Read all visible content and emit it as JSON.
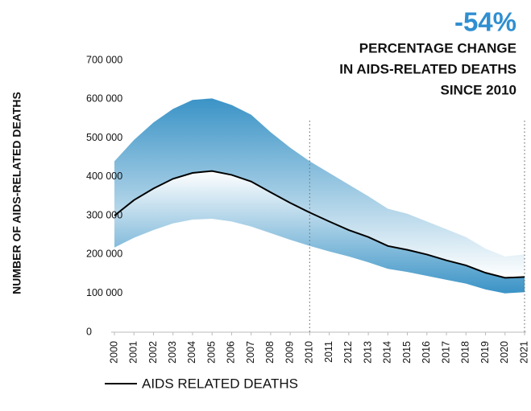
{
  "chart_data": {
    "type": "line",
    "y_label": "NUMBER OF AIDS-RELATED DEATHS",
    "categories": [
      "2000",
      "2001",
      "2002",
      "2003",
      "2004",
      "2005",
      "2006",
      "2007",
      "2008",
      "2009",
      "2010",
      "2011",
      "2012",
      "2013",
      "2014",
      "2015",
      "2016",
      "2017",
      "2018",
      "2019",
      "2020",
      "2021"
    ],
    "series": [
      {
        "name": "AIDS RELATED DEATHS",
        "color": "#000000",
        "values": [
          300000,
          340000,
          370000,
          395000,
          410000,
          415000,
          405000,
          388000,
          360000,
          333000,
          308000,
          285000,
          263000,
          245000,
          222000,
          212000,
          200000,
          185000,
          172000,
          153000,
          140000,
          142000
        ]
      }
    ],
    "band": {
      "color": "#3a93c6",
      "upper": [
        440000,
        495000,
        540000,
        575000,
        598000,
        602000,
        585000,
        560000,
        515000,
        475000,
        440000,
        410000,
        380000,
        350000,
        318000,
        305000,
        285000,
        265000,
        245000,
        215000,
        195000,
        200000
      ],
      "lower": [
        218000,
        243000,
        263000,
        280000,
        290000,
        292000,
        285000,
        272000,
        255000,
        238000,
        222000,
        208000,
        195000,
        180000,
        163000,
        155000,
        145000,
        135000,
        125000,
        110000,
        100000,
        103000
      ]
    },
    "ylim": [
      0,
      700000
    ],
    "yticks": [
      0,
      {
        "value": 100000,
        "label": "100 000"
      },
      {
        "value": 200000,
        "label": "200 000"
      },
      {
        "value": 300000,
        "label": "300 000"
      },
      {
        "value": 400000,
        "label": "400 000"
      },
      {
        "value": 500000,
        "label": "500 000"
      },
      {
        "value": 600000,
        "label": "600 000"
      },
      {
        "value": 700000,
        "label": "700 000"
      }
    ],
    "reference_x": [
      "2010",
      "2021"
    ],
    "annotation": {
      "value": -54,
      "value_label": "-54%",
      "color": "#2f8fd0",
      "lines": [
        "PERCENTAGE CHANGE",
        "IN AIDS-RELATED DEATHS",
        "SINCE 2010"
      ]
    }
  }
}
